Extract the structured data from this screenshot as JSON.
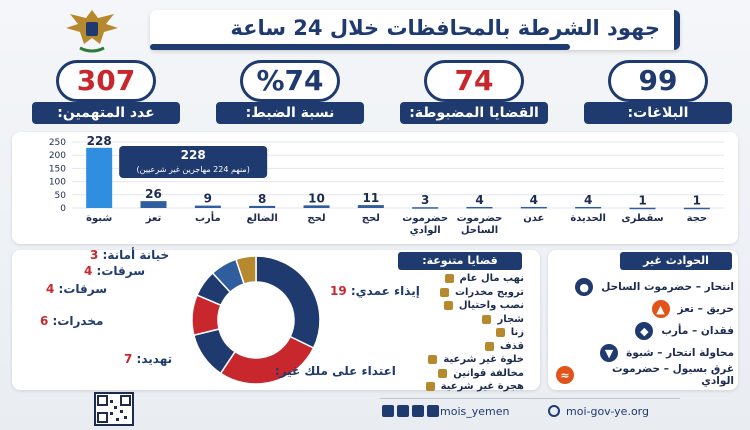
{
  "header": {
    "title": "جهود الشرطة بالمحافظات خلال 24 ساعة"
  },
  "kpis": [
    {
      "value": "99",
      "label": "البلاغات:"
    },
    {
      "value": "74",
      "label": "القضايا المضبوطة:"
    },
    {
      "value": "%74",
      "label": "نسبة الضبط:"
    },
    {
      "value": "307",
      "label": "عدد المتهمين:"
    }
  ],
  "chart_data": [
    {
      "type": "bar",
      "categories": [
        "شبوة",
        "تعز",
        "مأرب",
        "الضالع",
        "لحج",
        "لحج",
        "حضرموت الوادي",
        "حضرموت الساحل",
        "عدن",
        "الحديدة",
        "سقطرى",
        "حجة"
      ],
      "values": [
        228,
        26,
        9,
        8,
        10,
        11,
        3,
        4,
        4,
        4,
        1,
        1
      ],
      "ylim": [
        0,
        250
      ],
      "yticks": [
        0,
        50,
        100,
        150,
        200,
        250
      ],
      "annotation": {
        "value": "228",
        "text": "(منهم 224 مهاجرين غير شرعيين)"
      },
      "grid": true
    },
    {
      "type": "pie",
      "title": "قضايا متنوعة:",
      "slices": [
        {
          "label": "إيذاء عمدي:",
          "value": 19,
          "color": "#1f3a6e"
        },
        {
          "label": "اعتداء على ملك غير:",
          "value": 16,
          "color": "#c8282d"
        },
        {
          "label": "تهديد:",
          "value": 7,
          "color": "#1f3a6e"
        },
        {
          "label": "مخدرات:",
          "value": 6,
          "color": "#c8282d"
        },
        {
          "label": "سرقات:",
          "value": 4,
          "color": "#1f3a6e"
        },
        {
          "label": "سرقات:",
          "value": 4,
          "color": "#2f5d9e"
        },
        {
          "label": "خيانة أمانة:",
          "value": 3,
          "color": "#b7892e"
        }
      ],
      "other_items": [
        "نهب مال عام",
        "ترويج مخدرات",
        "نصب واحتيال",
        "شجار",
        "زنا",
        "قذف",
        "خلوة غير شرعية",
        "مخالفة قوانين",
        "هجرة غير شرعية"
      ]
    }
  ],
  "non_criminal": {
    "title": "الحوادث غير الجنائية:",
    "items": [
      {
        "text": "انتحار – حضرموت الساحل",
        "color": "#1f3a6e",
        "icon": "person-icon"
      },
      {
        "text": "حريق – تعز",
        "color": "#e0541a",
        "icon": "fire-icon"
      },
      {
        "text": "فقدان – مأرب",
        "color": "#1f3a6e",
        "icon": "compass-icon"
      },
      {
        "text": "محاولة انتحار – شبوة",
        "color": "#1f3a6e",
        "icon": "fall-icon"
      },
      {
        "text": "غرق بسيول – حضرموت الوادي",
        "color": "#e0541a",
        "icon": "swim-icon"
      }
    ]
  },
  "footer": {
    "handle": "mois_yemen",
    "site": "moi-gov-ye.org"
  }
}
